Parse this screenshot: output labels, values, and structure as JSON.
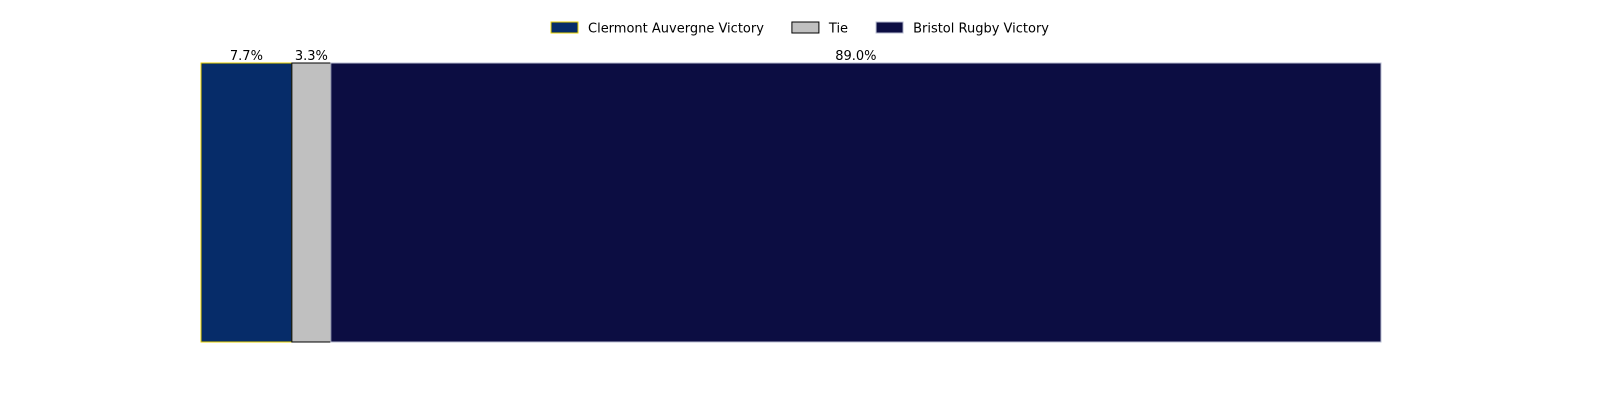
{
  "chart_data": {
    "type": "bar",
    "orientation": "horizontal-stacked",
    "title": "",
    "xlabel": "",
    "ylabel": "",
    "axes_visible": false,
    "grid": false,
    "legend_placement": "top-center",
    "total": 100,
    "series": [
      {
        "name": "Clermont Auvergne Victory",
        "value": 7.7,
        "label": "7.7%",
        "fill": "#062c69",
        "edge": "#e8d200"
      },
      {
        "name": "Tie",
        "value": 3.3,
        "label": "3.3%",
        "fill": "#c0c0c0",
        "edge": "#000000"
      },
      {
        "name": "Bristol Rugby Victory",
        "value": 89.0,
        "label": "89.0%",
        "fill": "#0c0d42",
        "edge": "#b7bbd0"
      }
    ]
  }
}
